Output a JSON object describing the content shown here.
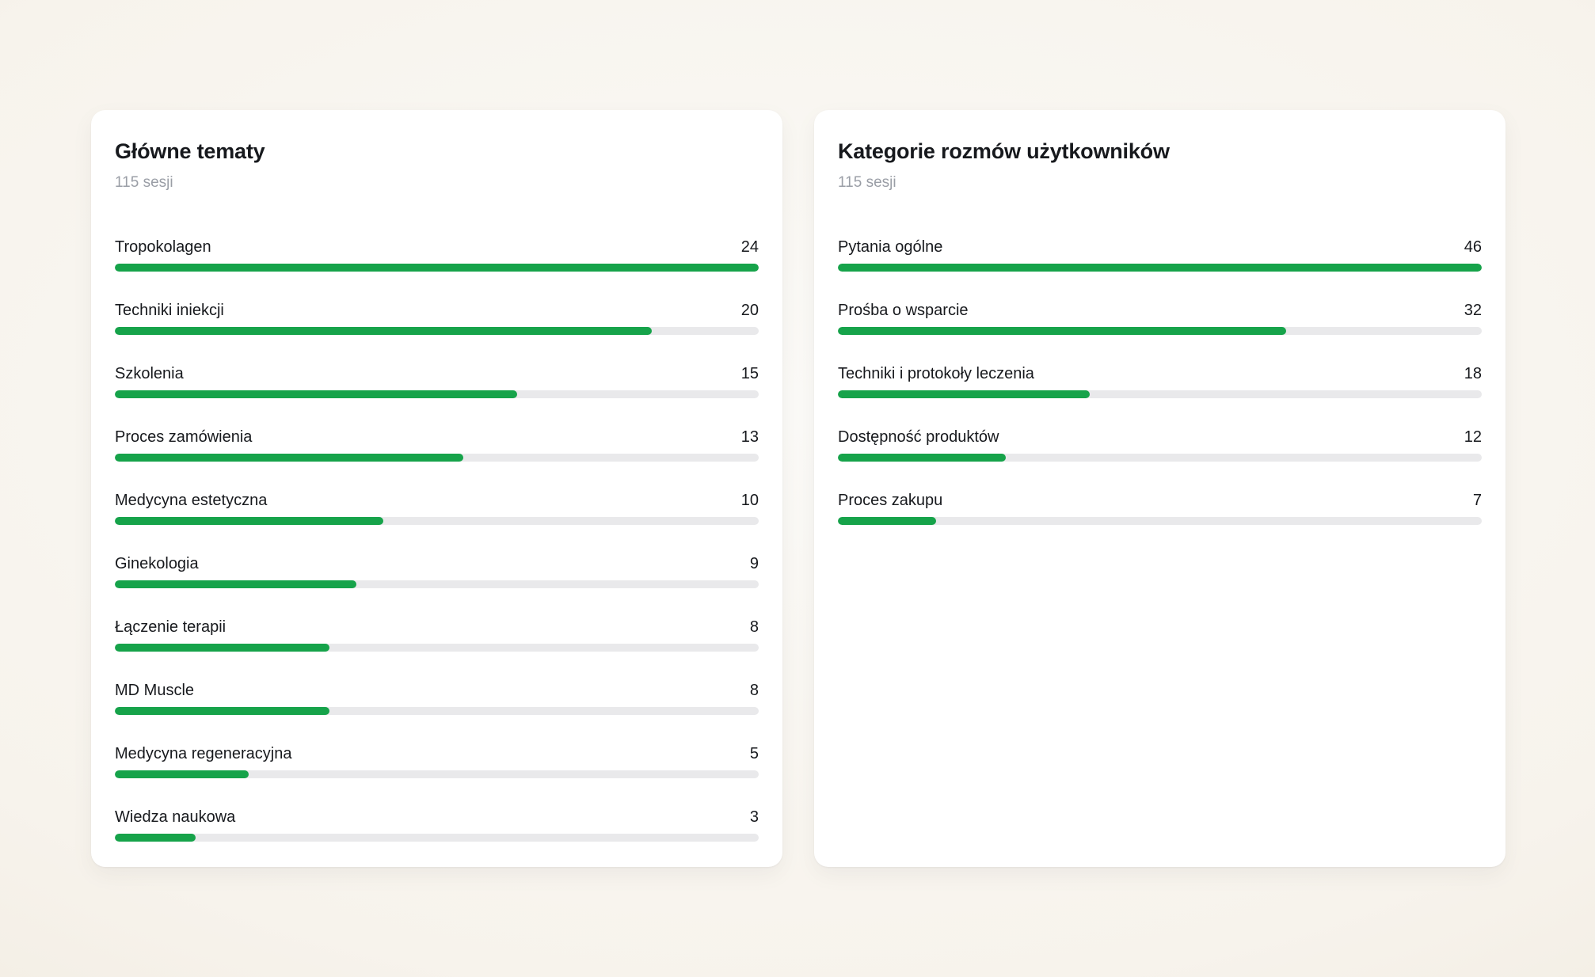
{
  "page": {
    "accent_color": "#16a34a",
    "track_color": "#e9e9eb",
    "card_background": "#ffffff"
  },
  "chart_data": [
    {
      "type": "bar",
      "orientation": "horizontal",
      "title": "Główne tematy",
      "subtitle": "115 sesji",
      "max": 24,
      "categories": [
        "Tropokolagen",
        "Techniki iniekcji",
        "Szkolenia",
        "Proces zamówienia",
        "Medycyna estetyczna",
        "Ginekologia",
        "Łączenie terapii",
        "MD Muscle",
        "Medycyna regeneracyjna",
        "Wiedza naukowa"
      ],
      "values": [
        24,
        20,
        15,
        13,
        10,
        9,
        8,
        8,
        5,
        3
      ]
    },
    {
      "type": "bar",
      "orientation": "horizontal",
      "title": "Kategorie rozmów użytkowników",
      "subtitle": "115 sesji",
      "max": 46,
      "categories": [
        "Pytania ogólne",
        "Prośba o wsparcie",
        "Techniki i protokoły leczenia",
        "Dostępność produktów",
        "Proces zakupu"
      ],
      "values": [
        46,
        32,
        18,
        12,
        7
      ]
    }
  ]
}
